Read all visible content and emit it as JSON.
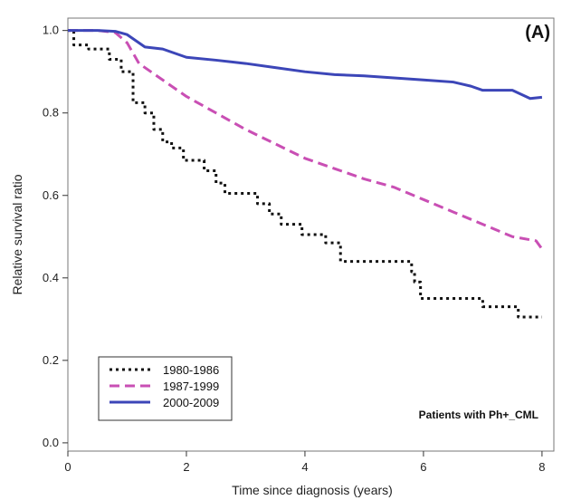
{
  "chart_data": {
    "type": "line",
    "panel_label": "(A)",
    "xlabel": "Time since diagnosis (years)",
    "ylabel": "Relative survival ratio",
    "xlim": [
      0,
      8.2
    ],
    "ylim": [
      -0.02,
      1.03
    ],
    "x_ticks": [
      0,
      2,
      4,
      6,
      8
    ],
    "y_ticks": [
      0.0,
      0.2,
      0.4,
      0.6,
      0.8,
      1.0
    ],
    "x_tick_labels": [
      "0",
      "2",
      "4",
      "6",
      "8"
    ],
    "y_tick_labels": [
      "0.0",
      "0.2",
      "0.4",
      "0.6",
      "0.8",
      "1.0"
    ],
    "grid": false,
    "legend_position": "bottom-left",
    "annotation": "Patients with Ph+_CML",
    "series": [
      {
        "name": "1980-1986",
        "style": "dotted",
        "color": "#111111",
        "step": true,
        "points": [
          [
            0,
            1.0
          ],
          [
            0.1,
            0.965
          ],
          [
            0.35,
            0.955
          ],
          [
            0.7,
            0.93
          ],
          [
            0.9,
            0.9
          ],
          [
            1.1,
            0.825
          ],
          [
            1.3,
            0.8
          ],
          [
            1.45,
            0.76
          ],
          [
            1.6,
            0.73
          ],
          [
            1.75,
            0.715
          ],
          [
            1.95,
            0.685
          ],
          [
            2.3,
            0.66
          ],
          [
            2.5,
            0.63
          ],
          [
            2.65,
            0.605
          ],
          [
            3.2,
            0.58
          ],
          [
            3.4,
            0.555
          ],
          [
            3.6,
            0.53
          ],
          [
            3.95,
            0.505
          ],
          [
            4.35,
            0.485
          ],
          [
            4.6,
            0.44
          ],
          [
            5.8,
            0.415
          ],
          [
            5.85,
            0.39
          ],
          [
            5.95,
            0.35
          ],
          [
            7.0,
            0.33
          ],
          [
            7.6,
            0.305
          ],
          [
            8.0,
            0.305
          ]
        ]
      },
      {
        "name": "1987-1999",
        "style": "dashed",
        "color": "#c94fb4",
        "step": false,
        "points": [
          [
            0,
            1.0
          ],
          [
            0.5,
            1.0
          ],
          [
            0.8,
            0.995
          ],
          [
            1.0,
            0.97
          ],
          [
            1.2,
            0.92
          ],
          [
            1.5,
            0.89
          ],
          [
            2.0,
            0.84
          ],
          [
            2.5,
            0.8
          ],
          [
            3.0,
            0.76
          ],
          [
            3.5,
            0.725
          ],
          [
            4.0,
            0.69
          ],
          [
            4.5,
            0.665
          ],
          [
            5.0,
            0.64
          ],
          [
            5.5,
            0.62
          ],
          [
            6.0,
            0.59
          ],
          [
            6.5,
            0.56
          ],
          [
            7.0,
            0.53
          ],
          [
            7.5,
            0.5
          ],
          [
            7.9,
            0.49
          ],
          [
            8.0,
            0.47
          ]
        ]
      },
      {
        "name": "2000-2009",
        "style": "solid",
        "color": "#3c46b8",
        "step": false,
        "points": [
          [
            0,
            1.0
          ],
          [
            0.5,
            1.0
          ],
          [
            0.8,
            0.998
          ],
          [
            1.0,
            0.99
          ],
          [
            1.3,
            0.96
          ],
          [
            1.6,
            0.955
          ],
          [
            2.0,
            0.935
          ],
          [
            2.5,
            0.928
          ],
          [
            3.0,
            0.92
          ],
          [
            3.5,
            0.91
          ],
          [
            4.0,
            0.9
          ],
          [
            4.5,
            0.893
          ],
          [
            5.0,
            0.89
          ],
          [
            5.5,
            0.885
          ],
          [
            6.0,
            0.88
          ],
          [
            6.5,
            0.875
          ],
          [
            6.8,
            0.865
          ],
          [
            7.0,
            0.855
          ],
          [
            7.5,
            0.855
          ],
          [
            7.8,
            0.835
          ],
          [
            8.0,
            0.838
          ]
        ]
      }
    ]
  }
}
